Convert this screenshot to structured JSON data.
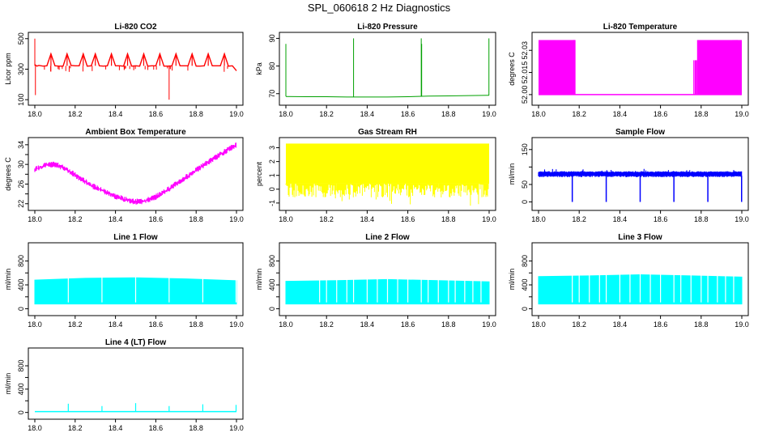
{
  "figure": {
    "title": "SPL_060618  2 Hz Diagnostics"
  },
  "chart_data": [
    {
      "id": "co2",
      "type": "line",
      "title": "Li-820 CO2",
      "ylabel": "Licor ppm",
      "color": "#ff0000",
      "xlim": [
        18.0,
        19.0
      ],
      "ylim": [
        85,
        520
      ],
      "xticks": [
        18.0,
        18.2,
        18.4,
        18.6,
        18.8,
        19.0
      ],
      "xtick_labels": [
        "18.0",
        "18.2",
        "18.4",
        "18.6",
        "18.8",
        "19.0"
      ],
      "yticks": [
        100,
        300,
        500
      ],
      "ytick_labels": [
        "100",
        "300",
        "500"
      ],
      "x": [
        18.0,
        18.01,
        18.02,
        18.04,
        18.06,
        18.08,
        18.1,
        18.12,
        18.14,
        18.16,
        18.18,
        18.2,
        18.22,
        18.24,
        18.26,
        18.28,
        18.3,
        18.32,
        18.34,
        18.36,
        18.38,
        18.4,
        18.42,
        18.44,
        18.46,
        18.48,
        18.5,
        18.52,
        18.54,
        18.56,
        18.58,
        18.6,
        18.62,
        18.64,
        18.66,
        18.68,
        18.7,
        18.72,
        18.74,
        18.76,
        18.78,
        18.8,
        18.82,
        18.84,
        18.86,
        18.88,
        18.9,
        18.92,
        18.94,
        18.96,
        18.98,
        19.0
      ],
      "y": [
        330,
        320,
        325,
        320,
        322,
        400,
        322,
        320,
        320,
        400,
        325,
        322,
        322,
        400,
        320,
        322,
        400,
        322,
        320,
        322,
        400,
        322,
        322,
        320,
        400,
        320,
        322,
        320,
        400,
        320,
        322,
        322,
        400,
        320,
        320,
        322,
        400,
        322,
        322,
        322,
        400,
        320,
        320,
        322,
        400,
        322,
        322,
        322,
        400,
        320,
        322,
        290
      ],
      "spikes": [
        {
          "x": 18.0,
          "y": 500
        },
        {
          "x": 18.003,
          "y": 130
        },
        {
          "x": 18.666,
          "y": 100
        }
      ]
    },
    {
      "id": "pressure",
      "type": "line",
      "title": "Li-820 Pressure",
      "ylabel": "kPa",
      "color": "#00a000",
      "xlim": [
        18.0,
        19.0
      ],
      "ylim": [
        67,
        91
      ],
      "xticks": [
        18.0,
        18.2,
        18.4,
        18.6,
        18.8,
        19.0
      ],
      "xtick_labels": [
        "18.0",
        "18.2",
        "18.4",
        "18.6",
        "18.8",
        "19.0"
      ],
      "yticks": [
        70,
        80,
        90
      ],
      "ytick_labels": [
        "70",
        "80",
        "90"
      ],
      "x": [
        18.0,
        18.1,
        18.2,
        18.3,
        18.4,
        18.5,
        18.6,
        18.7,
        18.8,
        18.9,
        19.0
      ],
      "y": [
        69.0,
        68.9,
        68.9,
        68.8,
        68.8,
        68.8,
        68.9,
        69.1,
        69.2,
        69.3,
        69.4
      ],
      "spikes": [
        {
          "x": 18.0,
          "y": 88
        },
        {
          "x": 18.333,
          "y": 90
        },
        {
          "x": 18.666,
          "y": 90
        },
        {
          "x": 18.668,
          "y": 88
        },
        {
          "x": 18.999,
          "y": 90
        }
      ]
    },
    {
      "id": "temperature",
      "type": "area",
      "title": "Li-820 Temperature",
      "ylabel": "degrees C",
      "color": "#ff00ff",
      "xlim": [
        18.0,
        19.0
      ],
      "ylim": [
        51.995,
        52.04
      ],
      "xticks": [
        18.0,
        18.2,
        18.4,
        18.6,
        18.8,
        19.0
      ],
      "xtick_labels": [
        "18.0",
        "18.2",
        "18.4",
        "18.6",
        "18.8",
        "19.0"
      ],
      "yticks": [
        52.0,
        52.015,
        52.03
      ],
      "ytick_labels": [
        "52.00",
        "52.015",
        "52.03"
      ],
      "low": 52.0,
      "high": 52.037,
      "bands": [
        [
          18.0,
          18.17
        ],
        [
          18.78,
          19.0
        ]
      ]
    },
    {
      "id": "ambient",
      "type": "line",
      "title": "Ambient Box Temperature",
      "ylabel": "degrees C",
      "color": "#ff00ff",
      "xlim": [
        18.0,
        19.0
      ],
      "ylim": [
        21.3,
        34.8
      ],
      "xticks": [
        18.0,
        18.2,
        18.4,
        18.6,
        18.8,
        19.0
      ],
      "xtick_labels": [
        "18.0",
        "18.2",
        "18.4",
        "18.6",
        "18.8",
        "19.0"
      ],
      "yticks": [
        22,
        24,
        26,
        28,
        30,
        32,
        34
      ],
      "ytick_labels": [
        "22",
        "26",
        "30",
        "34"
      ],
      "x": [
        18.0,
        18.05,
        18.1,
        18.15,
        18.2,
        18.25,
        18.3,
        18.35,
        18.4,
        18.45,
        18.5,
        18.55,
        18.6,
        18.65,
        18.7,
        18.75,
        18.8,
        18.85,
        18.9,
        18.95,
        19.0
      ],
      "y": [
        29.0,
        29.8,
        30.0,
        29.2,
        27.8,
        26.5,
        25.3,
        24.4,
        23.5,
        22.8,
        22.4,
        22.6,
        23.4,
        24.6,
        26.0,
        27.4,
        28.8,
        30.2,
        31.5,
        32.8,
        34.0
      ],
      "noise": 0.6
    },
    {
      "id": "rh",
      "type": "area",
      "title": "Gas Stream RH",
      "ylabel": "percent",
      "color": "#ffff00",
      "xlim": [
        18.0,
        19.0
      ],
      "ylim": [
        -1.3,
        3.5
      ],
      "xticks": [
        18.0,
        18.2,
        18.4,
        18.6,
        18.8,
        19.0
      ],
      "xtick_labels": [
        "18.0",
        "18.2",
        "18.4",
        "18.6",
        "18.8",
        "19.0"
      ],
      "yticks": [
        -1,
        0,
        1,
        2,
        3
      ],
      "ytick_labels": [
        "-1",
        "0",
        "1",
        "2",
        "3"
      ],
      "low": 0.4,
      "high": 3.3
    },
    {
      "id": "sample",
      "type": "line",
      "title": "Sample Flow",
      "ylabel": "ml/min",
      "color": "#0000ff",
      "xlim": [
        18.0,
        19.0
      ],
      "ylim": [
        -15,
        175
      ],
      "xticks": [
        18.0,
        18.2,
        18.4,
        18.6,
        18.8,
        19.0
      ],
      "xtick_labels": [
        "18.0",
        "18.2",
        "18.4",
        "18.6",
        "18.8",
        "19.0"
      ],
      "yticks": [
        0,
        50,
        100,
        150
      ],
      "ytick_labels": [
        "0",
        "50",
        "150"
      ],
      "low": 75,
      "high": 85,
      "dips": [
        18.166,
        18.333,
        18.5,
        18.666,
        18.833,
        18.999
      ],
      "dip_y": 0
    },
    {
      "id": "line1",
      "type": "area",
      "title": "Line 1 Flow",
      "ylabel": "ml/min",
      "color": "#00ffff",
      "xlim": [
        18.0,
        19.0
      ],
      "ylim": [
        -60,
        1050
      ],
      "xticks": [
        18.0,
        18.2,
        18.4,
        18.6,
        18.8,
        19.0
      ],
      "xtick_labels": [
        "18.0",
        "18.2",
        "18.4",
        "18.6",
        "18.8",
        "19.0"
      ],
      "yticks": [
        0,
        200,
        400,
        600,
        800
      ],
      "ytick_labels": [
        "0",
        "400",
        "800"
      ],
      "low": 80,
      "high": [
        480,
        510,
        520,
        500,
        470
      ],
      "gaps": [
        18.166,
        18.333,
        18.5,
        18.666,
        18.833,
        18.998
      ]
    },
    {
      "id": "line2",
      "type": "area",
      "title": "Line 2 Flow",
      "ylabel": "ml/min",
      "color": "#00ffff",
      "xlim": [
        18.0,
        19.0
      ],
      "ylim": [
        -60,
        1050
      ],
      "xticks": [
        18.0,
        18.2,
        18.4,
        18.6,
        18.8,
        19.0
      ],
      "xtick_labels": [
        "18.0",
        "18.2",
        "18.4",
        "18.6",
        "18.8",
        "19.0"
      ],
      "yticks": [
        0,
        200,
        400,
        600,
        800
      ],
      "ytick_labels": [
        "0",
        "400",
        "800"
      ],
      "low": 80,
      "high": [
        460,
        470,
        490,
        470,
        450
      ],
      "gaps": [
        18.166,
        18.2,
        18.25,
        18.3,
        18.333,
        18.4,
        18.45,
        18.5,
        18.55,
        18.6,
        18.666,
        18.7,
        18.75,
        18.8,
        18.833,
        18.88,
        18.92,
        18.96
      ]
    },
    {
      "id": "line3",
      "type": "area",
      "title": "Line 3 Flow",
      "ylabel": "ml/min",
      "color": "#00ffff",
      "xlim": [
        18.0,
        19.0
      ],
      "ylim": [
        -60,
        1050
      ],
      "xticks": [
        18.0,
        18.2,
        18.4,
        18.6,
        18.8,
        19.0
      ],
      "xtick_labels": [
        "18.0",
        "18.2",
        "18.4",
        "18.6",
        "18.8",
        "19.0"
      ],
      "yticks": [
        0,
        200,
        400,
        600,
        800
      ],
      "ytick_labels": [
        "0",
        "400",
        "800"
      ],
      "low": 80,
      "high": [
        540,
        550,
        570,
        550,
        530
      ],
      "gaps": [
        18.166,
        18.2,
        18.25,
        18.3,
        18.333,
        18.4,
        18.45,
        18.5,
        18.55,
        18.6,
        18.666,
        18.7,
        18.75,
        18.8,
        18.833,
        18.88,
        18.92,
        18.96
      ]
    },
    {
      "id": "line4",
      "type": "line",
      "title": "Line 4 (LT) Flow",
      "ylabel": "ml/min",
      "color": "#00ffff",
      "xlim": [
        18.0,
        19.0
      ],
      "ylim": [
        -60,
        1050
      ],
      "xticks": [
        18.0,
        18.2,
        18.4,
        18.6,
        18.8,
        19.0
      ],
      "xtick_labels": [
        "18.0",
        "18.2",
        "18.4",
        "18.6",
        "18.8",
        "19.0"
      ],
      "yticks": [
        0,
        200,
        400,
        600,
        800
      ],
      "ytick_labels": [
        "0",
        "400",
        "800"
      ],
      "baseline": 15,
      "spikes": [
        {
          "x": 18.166,
          "y": 150
        },
        {
          "x": 18.333,
          "y": 110
        },
        {
          "x": 18.5,
          "y": 160
        },
        {
          "x": 18.666,
          "y": 110
        },
        {
          "x": 18.833,
          "y": 140
        },
        {
          "x": 18.998,
          "y": 130
        }
      ]
    }
  ]
}
